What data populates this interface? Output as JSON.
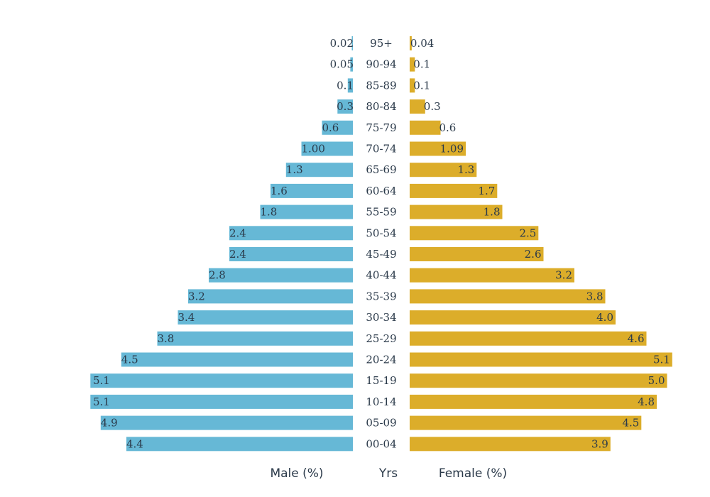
{
  "chart_data": {
    "type": "bar",
    "orientation": "horizontal-butterfly",
    "categories": [
      "95+",
      "90-94",
      "85-89",
      "80-84",
      "75-79",
      "70-74",
      "65-69",
      "60-64",
      "55-59",
      "50-54",
      "45-49",
      "40-44",
      "35-39",
      "30-34",
      "25-29",
      "20-24",
      "15-19",
      "10-14",
      "05-09",
      "00-04"
    ],
    "series": [
      {
        "name": "Male (%)",
        "color": "#66b8d6",
        "values": [
          0.02,
          0.05,
          0.1,
          0.3,
          0.6,
          1.0,
          1.3,
          1.6,
          1.8,
          2.4,
          2.4,
          2.8,
          3.2,
          3.4,
          3.8,
          4.5,
          5.1,
          5.1,
          4.9,
          4.4
        ],
        "labels": [
          "0.02",
          "0.05",
          "0.1",
          "0.3",
          "0.6",
          "1.00",
          "1.3",
          "1.6",
          "1.8",
          "2.4",
          "2.4",
          "2.8",
          "3.2",
          "3.4",
          "3.8",
          "4.5",
          "5.1",
          "5.1",
          "4.9",
          "4.4"
        ]
      },
      {
        "name": "Female (%)",
        "color": "#dcad2a",
        "values": [
          0.04,
          0.1,
          0.1,
          0.3,
          0.6,
          1.09,
          1.3,
          1.7,
          1.8,
          2.5,
          2.6,
          3.2,
          3.8,
          4.0,
          4.6,
          5.1,
          5.0,
          4.8,
          4.5,
          3.9
        ],
        "labels": [
          "0.04",
          "0.1",
          "0.1",
          "0.3",
          "0.6",
          "1.09",
          "1.3",
          "1.7",
          "1.8",
          "2.5",
          "2.6",
          "3.2",
          "3.8",
          "4.0",
          "4.6",
          "5.1",
          "5.0",
          "4.8",
          "4.5",
          "3.9"
        ]
      }
    ],
    "xlabel_left": "Male (%)",
    "xlabel_center": "Yrs",
    "xlabel_right": "Female (%)",
    "grid": false,
    "legend": "none"
  }
}
